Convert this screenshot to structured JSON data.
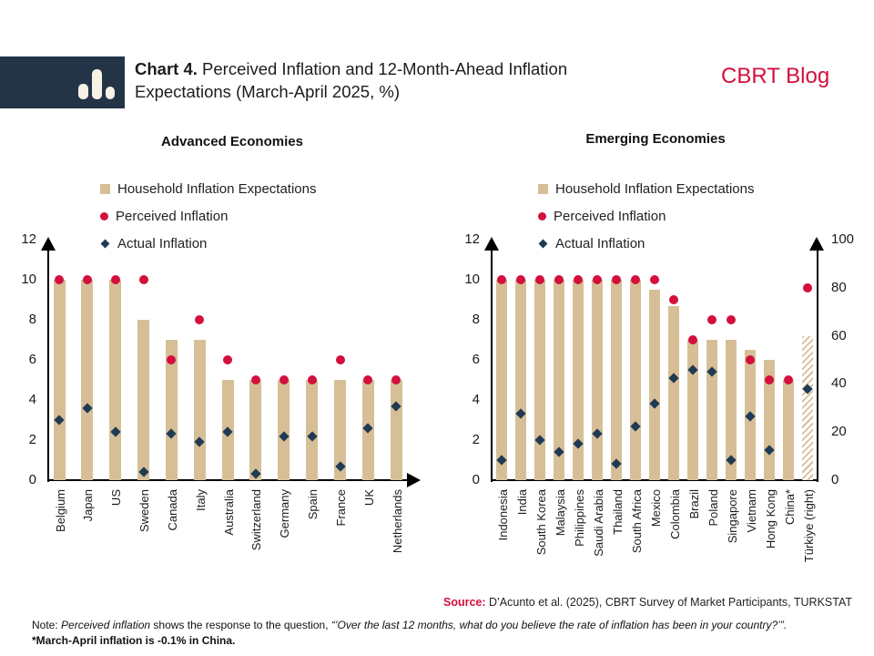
{
  "header": {
    "chart_label": "Chart 4.",
    "title_line1": " Perceived Inflation and 12-Month-Ahead Inflation",
    "title_line2": "Expectations (March-April 2025, %)",
    "brand": "CBRT Blog"
  },
  "legend": {
    "bar_label": "Household Inflation Expectations",
    "dot_label": "Perceived Inflation",
    "diamond_label": "Actual Inflation"
  },
  "colors": {
    "bar_tan": "#d6bf97",
    "perceived_red": "#d30f3e",
    "actual_navy": "#203a54",
    "header_navy": "#233447",
    "brand_red": "#d30f3e",
    "text_dark": "#1a1a1a"
  },
  "footer": {
    "source_label": "Source:",
    "source_text": " D’Acunto et al. (2025), CBRT Survey of Market Participants, TURKSTAT",
    "note_label": "Note: ",
    "note_term": "Perceived inflation",
    "note_mid": " shows the response to the question, ",
    "note_question": "“’Over the last 12 months, what do you believe the rate of inflation has been in your country?’”.",
    "note_line2": "*March-April inflation is -0.1% in China."
  },
  "chart_data": [
    {
      "type": "bar",
      "panel": "advanced",
      "title": "Advanced Economies",
      "ylim": [
        0,
        12
      ],
      "yticks": [
        0,
        2,
        4,
        6,
        8,
        10,
        12
      ],
      "grid": false,
      "legend_position": "top",
      "categories": [
        "Belgium",
        "Japan",
        "US",
        "Sweden",
        "Canada",
        "Italy",
        "Australia",
        "Switzerland",
        "Germany",
        "Spain",
        "France",
        "UK",
        "Netherlands"
      ],
      "series": [
        {
          "name": "Household Inflation Expectations",
          "type": "bar",
          "values": [
            10,
            10,
            10,
            8,
            7,
            7,
            5,
            5,
            5,
            5,
            5,
            5,
            5
          ]
        },
        {
          "name": "Perceived Inflation",
          "type": "dot",
          "values": [
            10,
            10,
            10,
            10,
            6,
            8,
            6,
            5,
            5,
            5,
            6,
            5,
            5
          ]
        },
        {
          "name": "Actual Inflation",
          "type": "diamond",
          "values": [
            3.0,
            3.6,
            2.4,
            0.4,
            2.3,
            1.9,
            2.4,
            0.3,
            2.2,
            2.2,
            0.7,
            2.6,
            3.7
          ]
        }
      ]
    },
    {
      "type": "bar",
      "panel": "emerging",
      "title": "Emerging Economies",
      "ylim": [
        0,
        12
      ],
      "yticks": [
        0,
        2,
        4,
        6,
        8,
        10,
        12
      ],
      "ylim_right": [
        0,
        100
      ],
      "yticks_right": [
        0,
        20,
        40,
        60,
        80,
        100
      ],
      "right_axis_category": "Türkiye (right)",
      "hatch_category": "Türkiye (right)",
      "grid": false,
      "legend_position": "top",
      "categories": [
        "Indonesia",
        "India",
        "South Korea",
        "Malaysia",
        "Philippines",
        "Saudi Arabia",
        "Thailand",
        "South Africa",
        "Mexico",
        "Colombia",
        "Brazil",
        "Poland",
        "Singapore",
        "Vietnam",
        "Hong Kong",
        "China*",
        "Türkiye (right)"
      ],
      "series": [
        {
          "name": "Household Inflation Expectations",
          "type": "bar",
          "values": [
            10,
            10,
            10,
            10,
            10,
            10,
            10,
            10,
            9.5,
            8.7,
            7,
            7,
            7,
            6.5,
            6,
            5,
            60
          ]
        },
        {
          "name": "Perceived Inflation",
          "type": "dot",
          "values": [
            10,
            10,
            10,
            10,
            10,
            10,
            10,
            10,
            10,
            9,
            7,
            8,
            8,
            6,
            5,
            5,
            80
          ]
        },
        {
          "name": "Actual Inflation",
          "type": "diamond",
          "values": [
            1.0,
            3.3,
            2.0,
            1.4,
            1.8,
            2.3,
            0.8,
            2.7,
            3.8,
            5.1,
            5.5,
            5.4,
            1.0,
            3.2,
            1.5,
            null,
            38
          ]
        }
      ]
    }
  ]
}
